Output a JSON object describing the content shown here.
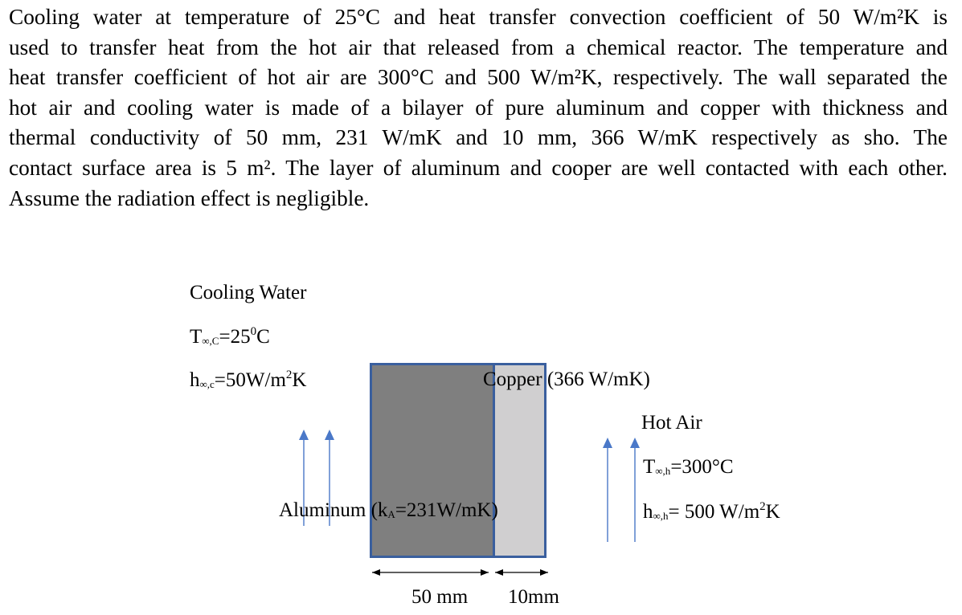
{
  "problem_lines": [
    "Cooling water at temperature of 25°C and heat transfer convection coefficient of 50 W/m²K is",
    "used to transfer heat from the hot air that released from a chemical reactor. The temperature and",
    "heat transfer coefficient of hot air are 300°C and 500 W/m²K, respectively. The wall separated the",
    "hot air and cooling water is made of a bilayer of pure aluminum and copper with thickness and",
    "thermal conductivity of 50 mm, 231 W/mK and 10 mm, 366 W/mK respectively as sho. The",
    "contact surface area is 5 m². The layer of aluminum and cooper are well contacted with each other.",
    "Assume the radiation effect is negligible."
  ],
  "diagram": {
    "cooling_water": {
      "title": "Cooling Water",
      "temp_T": "T",
      "temp_sub": "∞,C",
      "temp_value": "=25",
      "temp_deg": "0",
      "temp_unit": "C",
      "h_h": "h",
      "h_sub": "∞,c",
      "h_value": "=50W/m",
      "h_sup": "2",
      "h_unit": "K"
    },
    "hot_air": {
      "title": "Hot Air",
      "temp_T": "T",
      "temp_sub": "∞,h",
      "temp_value": "=300°C",
      "h_h": "h",
      "h_sub": "∞,h",
      "h_value": "= 500 W/m",
      "h_sup": "2",
      "h_unit": "K"
    },
    "copper_label": "Copper (366 W/mK)",
    "aluminum_label_pre": "Aluminum (k",
    "aluminum_label_sub": "A",
    "aluminum_label_post": "=231W/mK)",
    "dim_aluminum": "50 mm",
    "dim_copper": "10mm",
    "colors": {
      "aluminum_fill": "#7f7f7f",
      "copper_fill": "#d0cfd0",
      "border": "#3a5f9e",
      "flow_arrow": "#4a78c8"
    }
  }
}
